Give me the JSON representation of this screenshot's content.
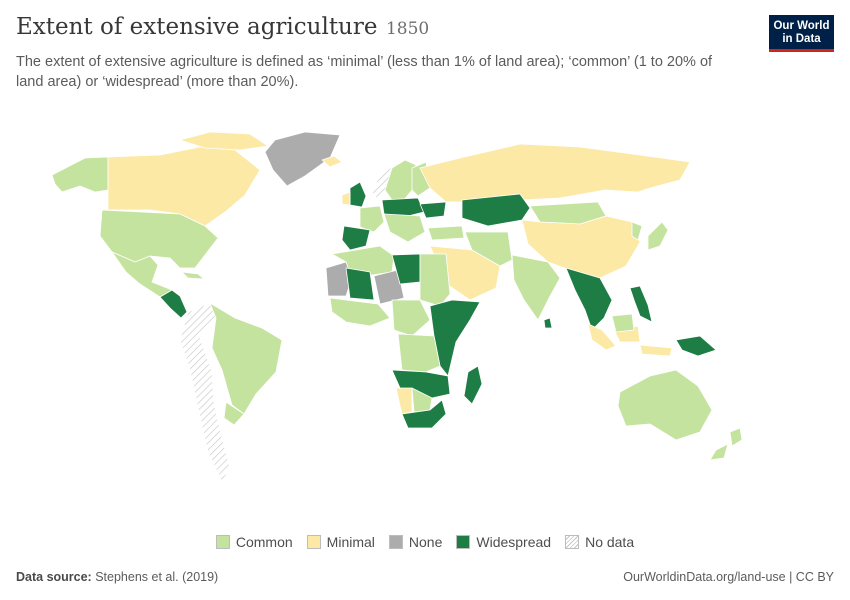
{
  "title": "Extent of extensive agriculture",
  "year": "1850",
  "subtitle": "The extent of extensive agriculture is defined as ‘minimal’ (less than 1% of land area); ‘common’ (1 to 20% of land area) or ‘widespread’ (more than 20%).",
  "logo": {
    "line1": "Our World",
    "line2": "in Data"
  },
  "legend": [
    {
      "label": "Common",
      "color": "#c4e39f"
    },
    {
      "label": "Minimal",
      "color": "#fce9a6"
    },
    {
      "label": "None",
      "color": "#acacac"
    },
    {
      "label": "Widespread",
      "color": "#1e7d45"
    },
    {
      "label": "No data",
      "color": "hatch"
    }
  ],
  "footer": {
    "source_label": "Data source:",
    "source": "Stephens et al. (2019)",
    "url": "OurWorldinData.org/land-use | CC BY"
  },
  "colors": {
    "common": "#c4e39f",
    "minimal": "#fce9a6",
    "none": "#acacac",
    "widespread": "#1e7d45",
    "border": "#ffffff"
  }
}
